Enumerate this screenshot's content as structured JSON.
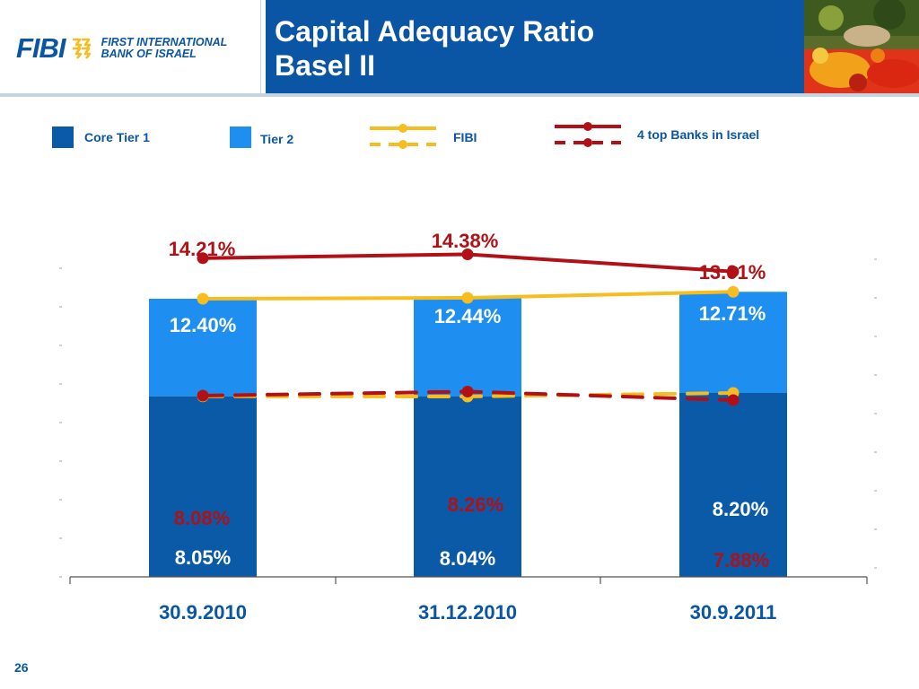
{
  "header": {
    "logo_word": "FIBI",
    "logo_line1": "FIRST INTERNATIONAL",
    "logo_line2": "BANK OF ISRAEL",
    "title_line1": "Capital Adequacy Ratio",
    "title_line2": "Basel II"
  },
  "page_number": "26",
  "colors": {
    "brand_blue": "#0a55a4",
    "core_tier1": "#0b5aa8",
    "tier2": "#1e8ff0",
    "fibi": "#f5bd1f",
    "top_banks": "#b01016"
  },
  "chart_data": {
    "type": "bar",
    "categories": [
      "30.9.2010",
      "31.12.2010",
      "30.9.2011"
    ],
    "ylim": [
      0,
      16
    ],
    "grid": false,
    "legend_position": "top",
    "legend": {
      "core_tier1": "Core Tier  1",
      "tier2": "Tier  2",
      "fibi": "FIBI",
      "top_banks": "4 top Banks in Israel"
    },
    "bars": {
      "core_tier1": [
        8.05,
        8.04,
        8.2
      ],
      "total": [
        12.4,
        12.44,
        12.71
      ]
    },
    "lines": [
      {
        "name": "FIBI",
        "style": "solid",
        "values": [
          12.4,
          12.44,
          12.71
        ]
      },
      {
        "name": "FIBI",
        "style": "dashed",
        "values": [
          8.05,
          8.04,
          8.2
        ]
      },
      {
        "name": "4 top Banks in Israel",
        "style": "solid",
        "values": [
          14.21,
          14.38,
          13.61
        ]
      },
      {
        "name": "4 top Banks in Israel",
        "style": "dashed",
        "values": [
          8.08,
          8.26,
          7.88
        ]
      }
    ],
    "labels": {
      "fibi_total": [
        "12.40%",
        "12.44%",
        "12.71%"
      ],
      "fibi_core": [
        "8.05%",
        "8.04%",
        "8.20%"
      ],
      "banks_total": [
        "14.21%",
        "14.38%",
        "13.61%"
      ],
      "banks_core": [
        "8.08%",
        "8.26%",
        "7.88%"
      ]
    }
  }
}
